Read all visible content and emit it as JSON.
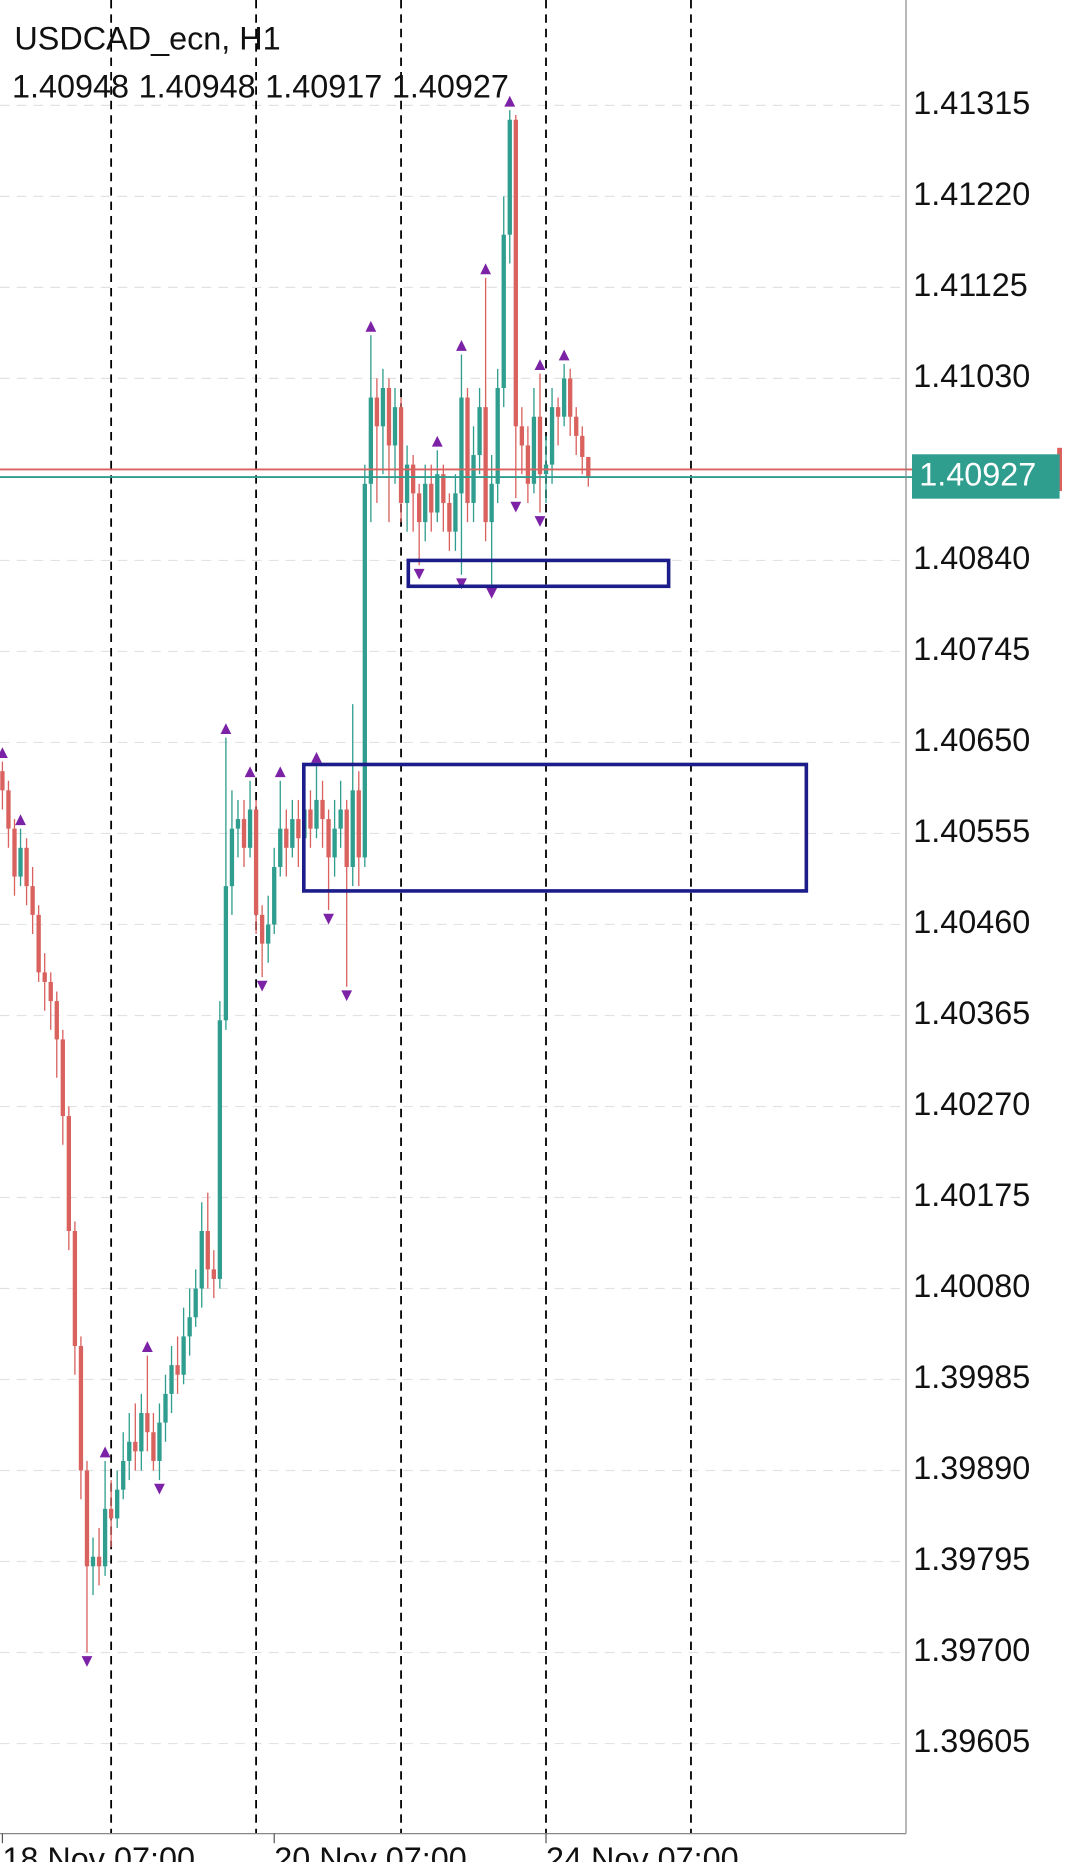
{
  "chart_data": {
    "type": "candlestick",
    "title": "USDCAD_ecn, H1",
    "up_color": "#2f9e8f",
    "down_color": "#d9625f",
    "arrow_color": "#7b22a6",
    "separator_color": "#000000",
    "box_color": "#1c1c8a",
    "ask_color": "#d9625f",
    "open": [
      1.4062,
      1.406,
      1.4056,
      1.4051,
      1.4054,
      1.405,
      1.4047,
      1.4041,
      1.404,
      1.4038,
      1.4034,
      1.4026,
      1.4014,
      1.4002,
      1.3989,
      1.3979,
      1.398,
      1.3979,
      1.3985,
      1.3984,
      1.3987,
      1.399,
      1.3992,
      1.3991,
      1.3995,
      1.3993,
      1.399,
      1.3994,
      1.3997,
      1.4,
      1.3999,
      1.4003,
      1.4005,
      1.4008,
      1.4014,
      1.401,
      1.4009,
      1.4036,
      1.405,
      1.4056,
      1.4057,
      1.4054,
      1.4058,
      1.4047,
      1.4044,
      1.4046,
      1.4052,
      1.4056,
      1.4054,
      1.4057,
      1.4055,
      1.4058,
      1.4056,
      1.4059,
      1.4057,
      1.4053,
      1.4056,
      1.4058,
      1.4052,
      1.406,
      1.4053,
      1.4092,
      1.4101,
      1.4098,
      1.4102,
      1.4096,
      1.41,
      1.409,
      1.4094,
      1.4091,
      1.4088,
      1.4092,
      1.4089,
      1.4093,
      1.409,
      1.4087,
      1.4091,
      1.4101,
      1.409,
      1.4095,
      1.41,
      1.4088,
      1.4092,
      1.4102,
      1.4118,
      1.413,
      1.4098,
      1.4096,
      1.4092,
      1.4099,
      1.4093,
      1.4094,
      1.41,
      1.4099,
      1.4103,
      1.4099,
      1.4097,
      1.40948
    ],
    "high": [
      1.4063,
      1.4061,
      1.4057,
      1.4056,
      1.4055,
      1.4052,
      1.4048,
      1.4043,
      1.4041,
      1.4039,
      1.4035,
      1.4027,
      1.4015,
      1.4003,
      1.399,
      1.3982,
      1.3983,
      1.399,
      1.3988,
      1.3989,
      1.3993,
      1.3995,
      1.3996,
      1.3997,
      1.4001,
      1.3995,
      1.3996,
      1.3999,
      1.4002,
      1.4003,
      1.4006,
      1.4008,
      1.401,
      1.4017,
      1.4018,
      1.4012,
      1.4038,
      1.40655,
      1.406,
      1.4059,
      1.4059,
      1.4061,
      1.4059,
      1.4048,
      1.4049,
      1.4054,
      1.4061,
      1.4058,
      1.4059,
      1.4059,
      1.406,
      1.406,
      1.40625,
      1.4061,
      1.4058,
      1.4059,
      1.4061,
      1.4059,
      1.4069,
      1.4062,
      1.4094,
      1.41075,
      1.4103,
      1.4104,
      1.4103,
      1.4102,
      1.4101,
      1.4096,
      1.4095,
      1.4092,
      1.4094,
      1.4094,
      1.40955,
      1.4094,
      1.4091,
      1.4093,
      1.41055,
      1.4102,
      1.4098,
      1.4102,
      1.41135,
      1.4095,
      1.4104,
      1.4122,
      1.4131,
      1.41305,
      1.41,
      1.4098,
      1.4102,
      1.41035,
      1.4097,
      1.4102,
      1.4101,
      1.41045,
      1.4104,
      1.41,
      1.4098,
      1.40948
    ],
    "low": [
      1.4058,
      1.4054,
      1.4049,
      1.405,
      1.4048,
      1.4045,
      1.404,
      1.4037,
      1.4035,
      1.403,
      1.4023,
      1.4012,
      1.3999,
      1.3986,
      1.397,
      1.3976,
      1.3977,
      1.3978,
      1.3981,
      1.3983,
      1.3986,
      1.3988,
      1.3989,
      1.3989,
      1.3991,
      1.3989,
      1.3988,
      1.3992,
      1.3995,
      1.3997,
      1.3998,
      1.4001,
      1.4004,
      1.4006,
      1.4008,
      1.4007,
      1.4008,
      1.4035,
      1.4047,
      1.4053,
      1.4052,
      1.4053,
      1.4045,
      1.40405,
      1.4042,
      1.4045,
      1.4051,
      1.4051,
      1.4053,
      1.4052,
      1.4054,
      1.4054,
      1.4055,
      1.4054,
      1.40475,
      1.4051,
      1.4054,
      1.40395,
      1.405,
      1.405,
      1.4052,
      1.4088,
      1.409,
      1.4093,
      1.4088,
      1.4092,
      1.4088,
      1.4087,
      1.4087,
      1.40835,
      1.4086,
      1.4087,
      1.4088,
      1.4087,
      1.4085,
      1.4085,
      1.40825,
      1.4088,
      1.4088,
      1.4093,
      1.4086,
      1.40815,
      1.409,
      1.41,
      1.4115,
      1.40905,
      1.4093,
      1.409,
      1.4091,
      1.4089,
      1.409,
      1.4092,
      1.4096,
      1.4098,
      1.4097,
      1.4095,
      1.4093,
      1.40917
    ],
    "close": [
      1.406,
      1.4056,
      1.4051,
      1.4054,
      1.405,
      1.4047,
      1.4041,
      1.404,
      1.4038,
      1.4034,
      1.4026,
      1.4014,
      1.4002,
      1.3989,
      1.3979,
      1.398,
      1.3979,
      1.3985,
      1.3984,
      1.3987,
      1.399,
      1.3992,
      1.3991,
      1.3995,
      1.3993,
      1.399,
      1.3994,
      1.3997,
      1.4,
      1.3999,
      1.4003,
      1.4005,
      1.4008,
      1.4014,
      1.401,
      1.4009,
      1.4036,
      1.405,
      1.4056,
      1.4057,
      1.4054,
      1.4058,
      1.4047,
      1.4044,
      1.4046,
      1.4052,
      1.4056,
      1.4054,
      1.4057,
      1.4055,
      1.4058,
      1.4056,
      1.4059,
      1.4057,
      1.4053,
      1.4056,
      1.4058,
      1.4052,
      1.406,
      1.4053,
      1.4092,
      1.4101,
      1.4098,
      1.4102,
      1.4096,
      1.41,
      1.409,
      1.4094,
      1.4091,
      1.4088,
      1.4092,
      1.4089,
      1.4093,
      1.409,
      1.4087,
      1.4091,
      1.4101,
      1.409,
      1.4095,
      1.41,
      1.4088,
      1.4092,
      1.4102,
      1.4118,
      1.413,
      1.4098,
      1.4096,
      1.4092,
      1.4099,
      1.4093,
      1.4094,
      1.41,
      1.4099,
      1.4103,
      1.4099,
      1.4097,
      1.40948,
      1.40927
    ],
    "fractals_up": [
      0,
      3,
      17,
      24,
      37,
      41,
      46,
      52,
      61,
      72,
      76,
      80,
      84,
      89,
      93
    ],
    "fractals_down": [
      14,
      26,
      43,
      54,
      57,
      69,
      76,
      81,
      85,
      89
    ],
    "ask": 1.40935,
    "separators": [
      18,
      42,
      66,
      90,
      114
    ],
    "boxes": [
      {
        "x": [
          67.2,
          110.3
        ],
        "y": [
          1.40813,
          1.4084
        ]
      },
      {
        "x": [
          49.9,
          133.1
        ],
        "y": [
          1.40495,
          1.40627
        ]
      }
    ],
    "xlim": [
      -0.4,
      149.6
    ],
    "ylim": [
      1.39511,
      1.41425
    ],
    "xticks": [
      {
        "value": 0,
        "label": "18 Nov 07:00"
      },
      {
        "value": 45,
        "label": "20 Nov 07:00"
      },
      {
        "value": 90,
        "label": "24 Nov 07:00"
      }
    ],
    "yticks": [
      1.41315,
      {
        "value": 1.4122,
        "label": "1.41220"
      },
      1.41125,
      {
        "value": 1.4103,
        "label": "1.41030"
      },
      {
        "value": 1.4084,
        "label": "1.40840"
      },
      1.40745,
      {
        "value": 1.4065,
        "label": "1.40650"
      },
      1.40555,
      {
        "value": 1.4046,
        "label": "1.40460"
      },
      1.40365,
      {
        "value": 1.4027,
        "label": "1.40270"
      },
      1.40175,
      {
        "value": 1.4008,
        "label": "1.40080"
      },
      1.39985,
      {
        "value": 1.3989,
        "label": "1.39890"
      },
      1.39795,
      {
        "value": 1.397,
        "label": "1.39700"
      },
      1.39605
    ],
    "grid": true
  }
}
